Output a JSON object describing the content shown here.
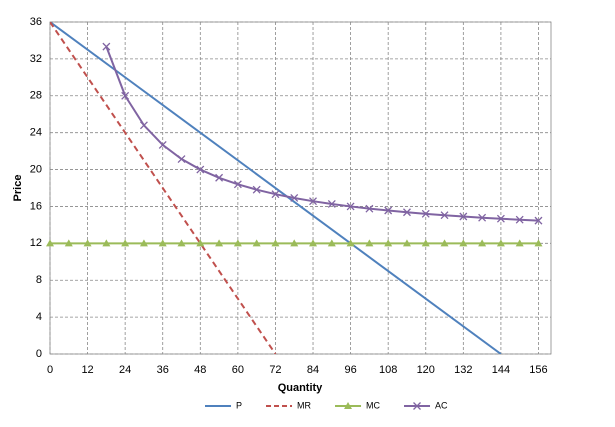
{
  "chart_data": {
    "type": "line",
    "x_label": "Quantity",
    "y_label": "Price",
    "xlim": [
      0,
      160
    ],
    "xticks": [
      0,
      12,
      24,
      36,
      48,
      60,
      72,
      84,
      96,
      108,
      120,
      132,
      144,
      156
    ],
    "ylim": [
      0,
      36
    ],
    "yticks": [
      0,
      4,
      8,
      12,
      16,
      20,
      24,
      28,
      32,
      36
    ],
    "grid": true,
    "legend": "bottom",
    "series": [
      {
        "name": "P",
        "color": "#4f81bd",
        "dash": false,
        "marker": "none",
        "x": [
          0,
          144
        ],
        "values": [
          36,
          0
        ]
      },
      {
        "name": "MR",
        "color": "#c0504d",
        "dash": true,
        "marker": "none",
        "x": [
          0,
          72
        ],
        "values": [
          36,
          0
        ]
      },
      {
        "name": "MC",
        "color": "#9bbb59",
        "dash": false,
        "marker": "triangle",
        "x": [
          0,
          6,
          12,
          18,
          24,
          30,
          36,
          42,
          48,
          54,
          60,
          66,
          72,
          78,
          84,
          90,
          96,
          102,
          108,
          114,
          120,
          126,
          132,
          138,
          144,
          150,
          156
        ],
        "values": [
          12,
          12,
          12,
          12,
          12,
          12,
          12,
          12,
          12,
          12,
          12,
          12,
          12,
          12,
          12,
          12,
          12,
          12,
          12,
          12,
          12,
          12,
          12,
          12,
          12,
          12,
          12
        ]
      },
      {
        "name": "AC",
        "color": "#8064a2",
        "dash": false,
        "marker": "x",
        "x": [
          18,
          24,
          30,
          36,
          42,
          48,
          54,
          60,
          66,
          72,
          78,
          84,
          90,
          96,
          102,
          108,
          114,
          120,
          126,
          132,
          138,
          144,
          150,
          156
        ],
        "values": [
          33.33,
          28,
          24.8,
          22.67,
          21.14,
          20,
          19.11,
          18.4,
          17.82,
          17.33,
          16.92,
          16.57,
          16.27,
          16,
          15.76,
          15.56,
          15.37,
          15.2,
          15.05,
          14.91,
          14.78,
          14.67,
          14.56,
          14.46
        ]
      }
    ]
  }
}
